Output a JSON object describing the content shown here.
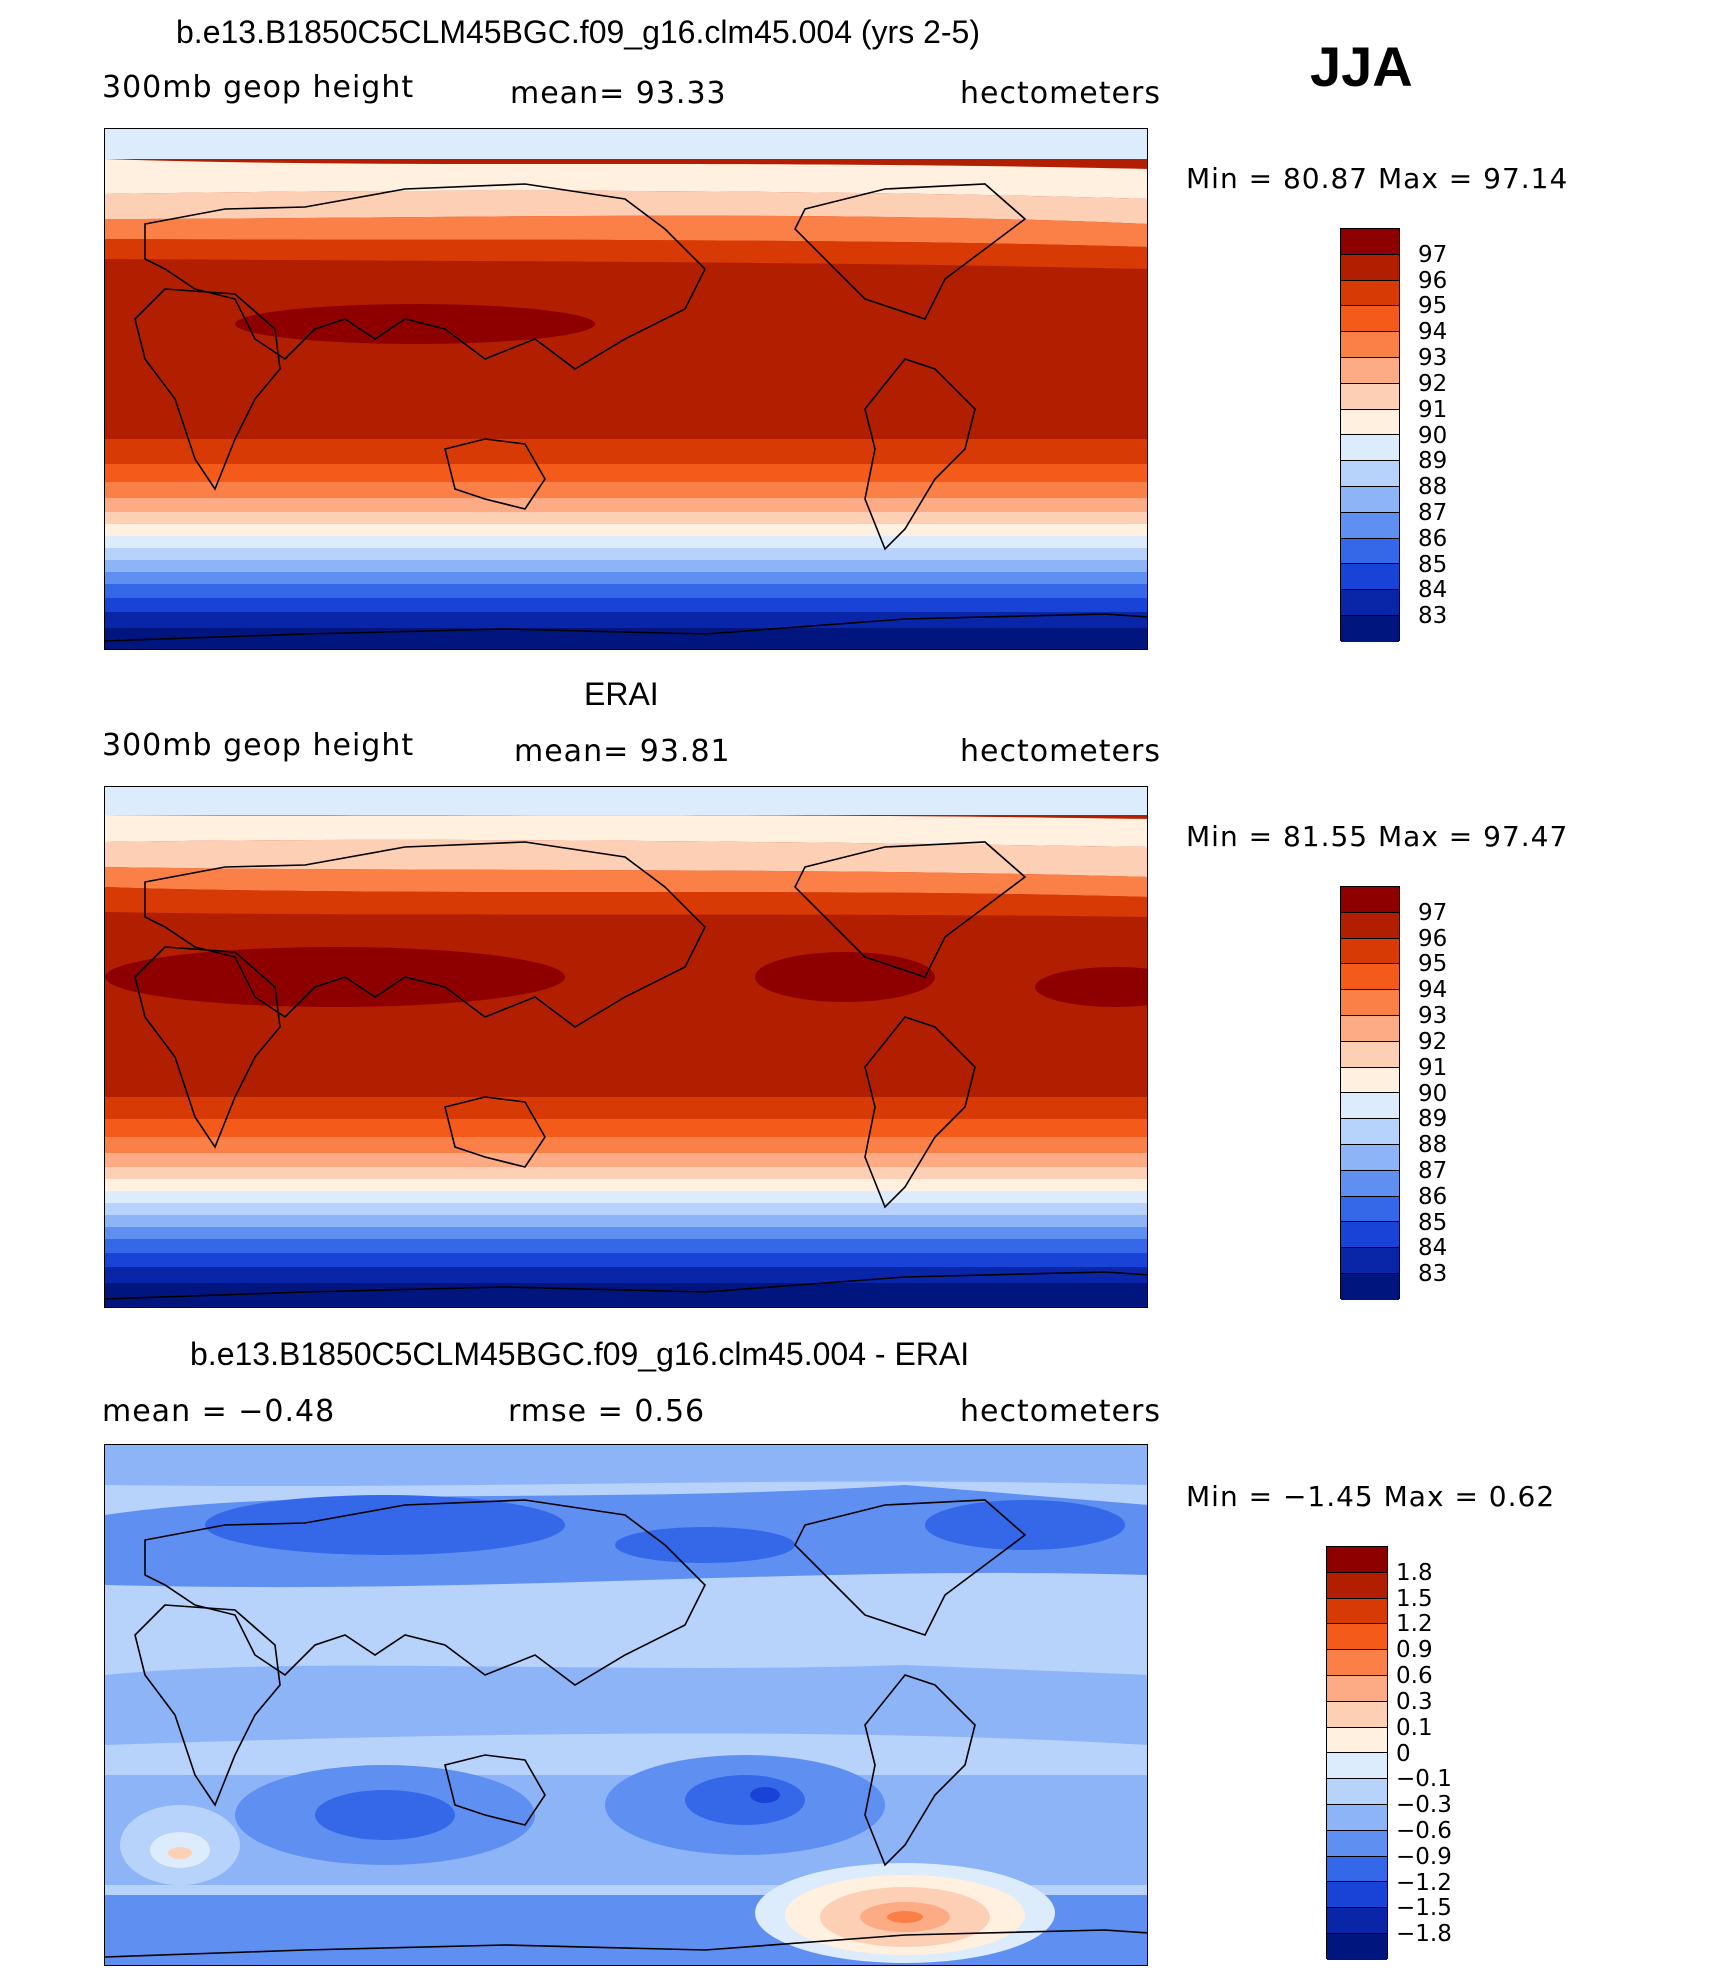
{
  "season": "JJA",
  "panels": [
    {
      "title": "b.e13.B1850C5CLM45BGC.f09_g16.clm45.004 (yrs 2-5)",
      "left_label": "300mb geop height",
      "center_label": "mean=  93.33",
      "right_label": "hectometers",
      "min_max": "Min =   80.87 Max =   97.14",
      "colorbar_labels": [
        "97",
        "96",
        "95",
        "94",
        "93",
        "92",
        "91",
        "90",
        "89",
        "88",
        "87",
        "86",
        "85",
        "84",
        "83"
      ],
      "colorbar_colors": [
        "#8e0000",
        "#b21f00",
        "#d83a06",
        "#f45a1a",
        "#fb8048",
        "#fcab84",
        "#fdd0b5",
        "#fff0e0",
        "#dcecfc",
        "#b7d2fb",
        "#8db4f7",
        "#5f8ff0",
        "#3568e8",
        "#1843d6",
        "#0925a8",
        "#00157e"
      ]
    },
    {
      "title": "ERAI",
      "left_label": "300mb geop height",
      "center_label": "mean=  93.81",
      "right_label": "hectometers",
      "min_max": "Min =   81.55 Max =   97.47",
      "colorbar_labels": [
        "97",
        "96",
        "95",
        "94",
        "93",
        "92",
        "91",
        "90",
        "89",
        "88",
        "87",
        "86",
        "85",
        "84",
        "83"
      ],
      "colorbar_colors": [
        "#8e0000",
        "#b21f00",
        "#d83a06",
        "#f45a1a",
        "#fb8048",
        "#fcab84",
        "#fdd0b5",
        "#fff0e0",
        "#dcecfc",
        "#b7d2fb",
        "#8db4f7",
        "#5f8ff0",
        "#3568e8",
        "#1843d6",
        "#0925a8",
        "#00157e"
      ]
    },
    {
      "title": "b.e13.B1850C5CLM45BGC.f09_g16.clm45.004 - ERAI",
      "left_label": "mean =   −0.48",
      "center_label": "rmse =    0.56",
      "right_label": "hectometers",
      "min_max": "Min =   −1.45 Max =    0.62",
      "colorbar_labels": [
        "1.8",
        "1.5",
        "1.2",
        "0.9",
        "0.6",
        "0.3",
        "0.1",
        "0",
        "−0.1",
        "−0.3",
        "−0.6",
        "−0.9",
        "−1.2",
        "−1.5",
        "−1.8"
      ],
      "colorbar_colors": [
        "#8e0000",
        "#b21f00",
        "#d83a06",
        "#f45a1a",
        "#fb8048",
        "#fcab84",
        "#fdd0b5",
        "#fff0e0",
        "#dcecfc",
        "#b7d2fb",
        "#8db4f7",
        "#5f8ff0",
        "#3568e8",
        "#1843d6",
        "#0925a8",
        "#00157e"
      ]
    }
  ]
}
